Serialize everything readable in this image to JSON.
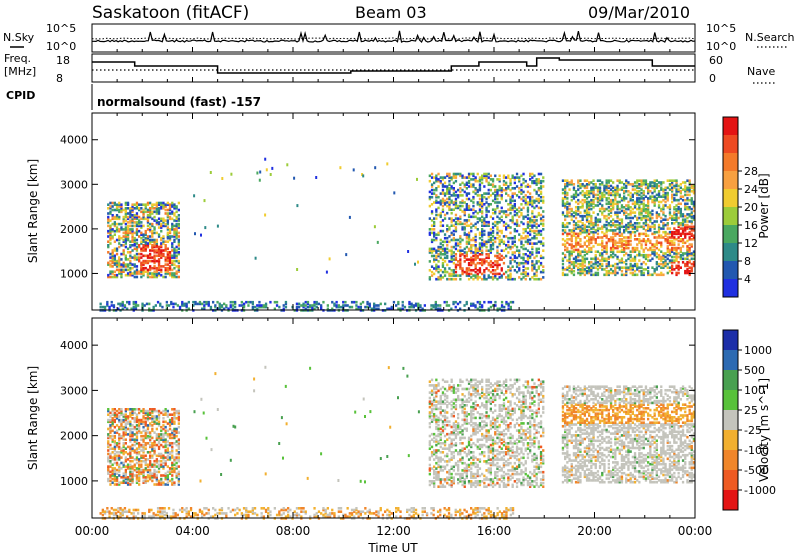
{
  "header": {
    "site": "Saskatoon (fitACF)",
    "beam": "Beam 03",
    "date": "09/Mar/2010"
  },
  "param_panels": {
    "nsky_label": "N.Sky",
    "nsky_ticks": [
      "10^5",
      "10^0"
    ],
    "nsearch_label": "N.Search",
    "nsearch_ticks": [
      "10^5",
      "10^0"
    ],
    "freq_label": [
      "Freq.",
      "[MHz]"
    ],
    "freq_ticks": [
      "18",
      "8"
    ],
    "nave_label": "Nave",
    "nave_ticks": [
      "60",
      "0"
    ],
    "cpid_label": "CPID",
    "cpid_value": "normalsound (fast) -157"
  },
  "chart_data": [
    {
      "type": "heatmap",
      "name": "power",
      "ylabel": "Slant Range [km]",
      "xlabel": "",
      "xlim": [
        0,
        24
      ],
      "ylim": [
        180,
        4600
      ],
      "yticks": [
        "1000",
        "2000",
        "3000",
        "4000"
      ],
      "colorbar": {
        "label": "Power [dB]",
        "ticks": [
          "4",
          "8",
          "12",
          "16",
          "20",
          "24",
          "28"
        ],
        "colors": [
          "#2030e0",
          "#2258b0",
          "#2e8a88",
          "#4aa860",
          "#9ccc3a",
          "#f0cc30",
          "#f8a040",
          "#f47a2a",
          "#ee4a22",
          "#e41414"
        ]
      },
      "echo_regions": [
        {
          "t": [
            0.6,
            3.4
          ],
          "r": [
            900,
            2700
          ],
          "level": "mixed, strong 1100-1600 km near 02:30"
        },
        {
          "t": [
            13.4,
            18.0
          ],
          "r": [
            900,
            3300
          ],
          "level": "mixed, strong 1000-1400 km near 15:00"
        },
        {
          "t": [
            18.7,
            24.0
          ],
          "r": [
            1000,
            3200
          ],
          "level": "mixed, strong bands near 1100 and 1700-2000 km"
        },
        {
          "t": [
            0.0,
            17.0
          ],
          "r": [
            180,
            500
          ],
          "level": "weak ground scatter"
        }
      ]
    },
    {
      "type": "heatmap",
      "name": "velocity",
      "xlabel": "Time UT",
      "ylabel": "Slant Range [km]",
      "xlim": [
        0,
        24
      ],
      "ylim": [
        180,
        4600
      ],
      "xticks": [
        "00:00",
        "04:00",
        "08:00",
        "12:00",
        "16:00",
        "20:00",
        "00:00"
      ],
      "yticks": [
        "1000",
        "2000",
        "3000",
        "4000"
      ],
      "colorbar": {
        "label": "Velocity [m s^-1]",
        "ticks": [
          "1000",
          "500",
          "100",
          "25",
          "-25",
          "-100",
          "-500",
          "-1000"
        ],
        "colors": [
          "#1c2ea8",
          "#2c6ab2",
          "#48a050",
          "#58c23a",
          "#c4c4bc",
          "#f2b030",
          "#f0862a",
          "#ee5a22",
          "#e41414"
        ]
      },
      "echo_regions": [
        {
          "t": [
            0.6,
            3.4
          ],
          "r": [
            900,
            2700
          ],
          "level": "mostly orange/gray, some green"
        },
        {
          "t": [
            13.4,
            18.0
          ],
          "r": [
            900,
            3300
          ],
          "level": "mostly gray, some orange/green"
        },
        {
          "t": [
            18.7,
            24.0
          ],
          "r": [
            1000,
            3200
          ],
          "level": "mostly gray, orange near 2300-2700 km"
        },
        {
          "t": [
            0.0,
            17.0
          ],
          "r": [
            180,
            500
          ],
          "level": "weak, yellow-orange"
        }
      ]
    }
  ]
}
